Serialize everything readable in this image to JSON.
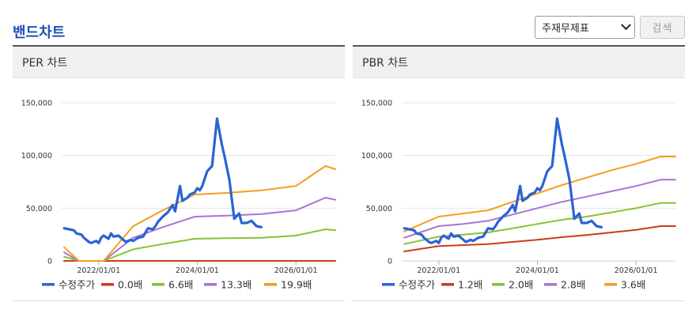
{
  "page": {
    "title": "밴드차트"
  },
  "controls": {
    "select_value": "주재무제표",
    "search_label": "검색"
  },
  "chart_data": [
    {
      "id": "per",
      "type": "line",
      "title": "PER 차트",
      "xlabel": "",
      "ylabel": "",
      "xlim": [
        2021.25,
        2026.8
      ],
      "ylim": [
        0,
        150000
      ],
      "yticks": [
        0,
        50000,
        100000,
        150000
      ],
      "ytick_labels": [
        "0",
        "50,000",
        "100,000",
        "150,000"
      ],
      "xticks": [
        2022.0,
        2024.0,
        2026.0
      ],
      "xtick_labels": [
        "2022/01/01",
        "2024/01/01",
        "2026/01/01"
      ],
      "grid": true,
      "legend_position": "bottom",
      "series": [
        {
          "name": "수정주가",
          "color": "#2a63d4",
          "width": 3.2,
          "x": [
            2021.3,
            2021.4,
            2021.5,
            2021.55,
            2021.65,
            2021.7,
            2021.8,
            2021.85,
            2021.95,
            2022.0,
            2022.05,
            2022.1,
            2022.2,
            2022.25,
            2022.3,
            2022.4,
            2022.5,
            2022.55,
            2022.65,
            2022.7,
            2022.8,
            2022.9,
            2023.0,
            2023.1,
            2023.15,
            2023.2,
            2023.3,
            2023.4,
            2023.5,
            2023.55,
            2023.65,
            2023.7,
            2023.8,
            2023.85,
            2023.95,
            2024.0,
            2024.05,
            2024.1,
            2024.2,
            2024.3,
            2024.4,
            2024.5,
            2024.55,
            2024.65,
            2024.75,
            2024.85,
            2024.9,
            2025.0,
            2025.1,
            2025.2,
            2025.3
          ],
          "y": [
            31000,
            30000,
            29000,
            26000,
            25000,
            22000,
            18000,
            17000,
            19000,
            17000,
            22000,
            24000,
            21000,
            26000,
            23000,
            24000,
            20000,
            18000,
            20000,
            19000,
            22000,
            23000,
            31000,
            30000,
            33000,
            37000,
            42000,
            46000,
            53000,
            47000,
            71000,
            57000,
            60000,
            63000,
            65000,
            69000,
            67000,
            71000,
            85000,
            90000,
            135000,
            110000,
            100000,
            77000,
            40000,
            45000,
            36000,
            36000,
            38000,
            33000,
            32000
          ]
        },
        {
          "name": "0.0배",
          "color": "#cc3d1a",
          "width": 2,
          "x": [
            2021.3,
            2026.8
          ],
          "y": [
            0,
            0
          ]
        },
        {
          "name": "6.6배",
          "color": "#86c230",
          "width": 2,
          "x": [
            2021.3,
            2021.6,
            2022.1,
            2022.7,
            2023.3,
            2023.95,
            2024.6,
            2025.3,
            2026.0,
            2026.6,
            2026.8
          ],
          "y": [
            4000,
            0,
            0,
            11000,
            16000,
            21000,
            21500,
            22000,
            24000,
            30000,
            29000
          ]
        },
        {
          "name": "13.3배",
          "color": "#a775d6",
          "width": 2,
          "x": [
            2021.3,
            2021.6,
            2022.1,
            2022.7,
            2023.3,
            2023.95,
            2024.6,
            2025.3,
            2026.0,
            2026.6,
            2026.8
          ],
          "y": [
            8000,
            0,
            0,
            22000,
            32000,
            42000,
            43000,
            44500,
            48000,
            60000,
            58000
          ]
        },
        {
          "name": "19.9배",
          "color": "#f59d1f",
          "width": 2,
          "x": [
            2021.3,
            2021.6,
            2022.1,
            2022.7,
            2023.3,
            2023.95,
            2024.6,
            2025.3,
            2026.0,
            2026.6,
            2026.8
          ],
          "y": [
            13000,
            0,
            0,
            33000,
            48000,
            63000,
            64500,
            67000,
            71000,
            90000,
            87000
          ]
        }
      ]
    },
    {
      "id": "pbr",
      "type": "line",
      "title": "PBR 차트",
      "xlabel": "",
      "ylabel": "",
      "xlim": [
        2021.25,
        2026.8
      ],
      "ylim": [
        0,
        150000
      ],
      "yticks": [
        0,
        50000,
        100000,
        150000
      ],
      "ytick_labels": [
        "0",
        "50,000",
        "100,000",
        "150,000"
      ],
      "xticks": [
        2022.0,
        2024.0,
        2026.0
      ],
      "xtick_labels": [
        "2022/01/01",
        "2024/01/01",
        "2026/01/01"
      ],
      "grid": true,
      "legend_position": "bottom",
      "series": [
        {
          "name": "수정주가",
          "color": "#2a63d4",
          "width": 3.2,
          "x": [
            2021.3,
            2021.4,
            2021.5,
            2021.55,
            2021.65,
            2021.7,
            2021.8,
            2021.85,
            2021.95,
            2022.0,
            2022.05,
            2022.1,
            2022.2,
            2022.25,
            2022.3,
            2022.4,
            2022.5,
            2022.55,
            2022.65,
            2022.7,
            2022.8,
            2022.9,
            2023.0,
            2023.1,
            2023.15,
            2023.2,
            2023.3,
            2023.4,
            2023.5,
            2023.55,
            2023.65,
            2023.7,
            2023.8,
            2023.85,
            2023.95,
            2024.0,
            2024.05,
            2024.1,
            2024.2,
            2024.3,
            2024.4,
            2024.5,
            2024.55,
            2024.65,
            2024.75,
            2024.85,
            2024.9,
            2025.0,
            2025.1,
            2025.2,
            2025.3
          ],
          "y": [
            31000,
            30000,
            29000,
            26000,
            25000,
            22000,
            18000,
            17000,
            19000,
            17000,
            22000,
            24000,
            21000,
            26000,
            23000,
            24000,
            20000,
            18000,
            20000,
            19000,
            22000,
            23000,
            31000,
            30000,
            33000,
            37000,
            42000,
            46000,
            53000,
            47000,
            71000,
            57000,
            60000,
            63000,
            65000,
            69000,
            67000,
            71000,
            85000,
            90000,
            135000,
            110000,
            100000,
            77000,
            40000,
            45000,
            36000,
            36000,
            38000,
            33000,
            32000
          ]
        },
        {
          "name": "1.2배",
          "color": "#cc3d1a",
          "width": 2,
          "x": [
            2021.3,
            2022.0,
            2022.5,
            2023.0,
            2023.5,
            2024.0,
            2024.5,
            2025.0,
            2025.5,
            2026.0,
            2026.5,
            2026.8
          ],
          "y": [
            9000,
            14000,
            15000,
            16000,
            18000,
            20000,
            22500,
            24500,
            27000,
            29500,
            33000,
            33000
          ]
        },
        {
          "name": "2.0배",
          "color": "#86c230",
          "width": 2,
          "x": [
            2021.3,
            2022.0,
            2022.5,
            2023.0,
            2023.5,
            2024.0,
            2024.5,
            2025.0,
            2025.5,
            2026.0,
            2026.5,
            2026.8
          ],
          "y": [
            16000,
            23000,
            25000,
            27000,
            31000,
            35000,
            39000,
            42000,
            46000,
            50000,
            55000,
            55000
          ]
        },
        {
          "name": "2.8배",
          "color": "#a775d6",
          "width": 2,
          "x": [
            2021.3,
            2022.0,
            2022.5,
            2023.0,
            2023.5,
            2024.0,
            2024.5,
            2025.0,
            2025.5,
            2026.0,
            2026.5,
            2026.8
          ],
          "y": [
            22000,
            33000,
            35000,
            38000,
            44000,
            50000,
            56000,
            61000,
            66000,
            71000,
            77000,
            77000
          ]
        },
        {
          "name": "3.6배",
          "color": "#f59d1f",
          "width": 2,
          "x": [
            2021.3,
            2022.0,
            2022.5,
            2023.0,
            2023.5,
            2024.0,
            2024.5,
            2025.0,
            2025.5,
            2026.0,
            2026.5,
            2026.8
          ],
          "y": [
            28000,
            42000,
            45000,
            48000,
            56000,
            64000,
            72000,
            79000,
            86000,
            92000,
            99000,
            99000
          ]
        }
      ]
    }
  ]
}
